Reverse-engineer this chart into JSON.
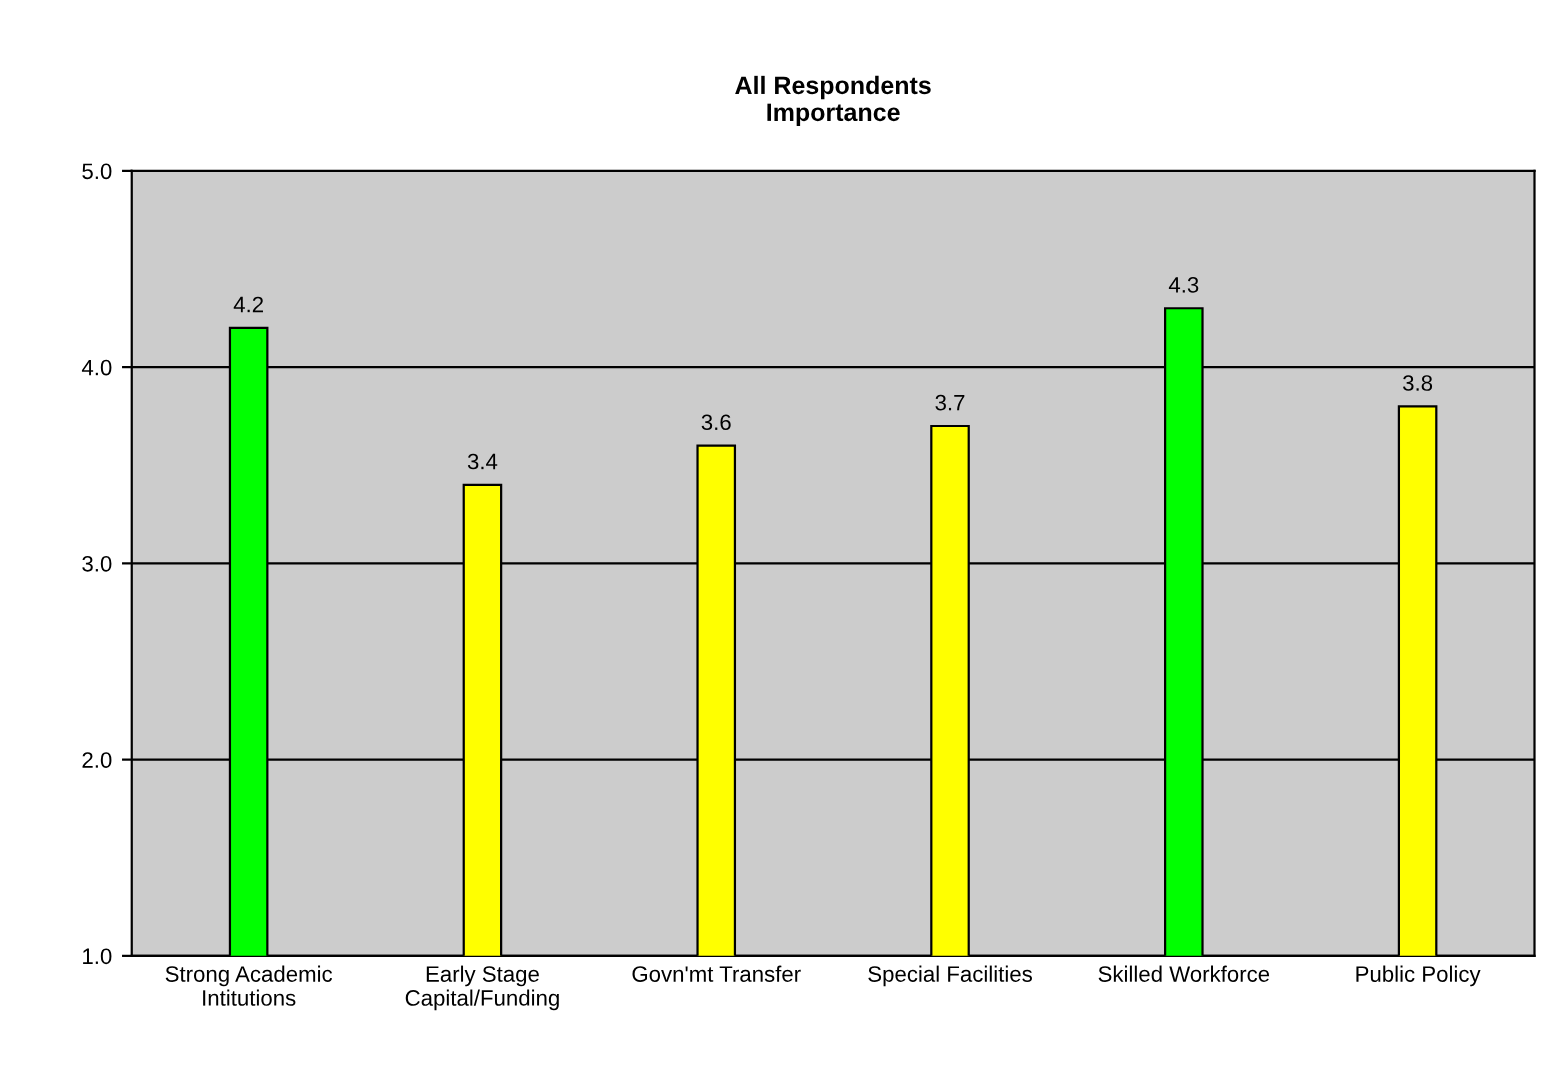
{
  "chart_data": {
    "type": "bar",
    "title": "All Respondents\nImportance",
    "categories": [
      "Strong Academic\nIntitutions",
      "Early Stage\nCapital/Funding",
      "Govn'mt Transfer",
      "Special Facilities",
      "Skilled Workforce",
      "Public Policy"
    ],
    "values": [
      4.2,
      3.4,
      3.6,
      3.7,
      4.3,
      3.8
    ],
    "colors": [
      "#00ff00",
      "#ffff00",
      "#ffff00",
      "#ffff00",
      "#00ff00",
      "#ffff00"
    ],
    "ylim": [
      1,
      5
    ],
    "yticks": [
      {
        "value": 1,
        "label": "1.0"
      },
      {
        "value": 2,
        "label": "2.0"
      },
      {
        "value": 3,
        "label": "3.0"
      },
      {
        "value": 4,
        "label": "4.0"
      },
      {
        "value": 5,
        "label": "5.0"
      }
    ],
    "grid": "y",
    "data_labels": true
  }
}
